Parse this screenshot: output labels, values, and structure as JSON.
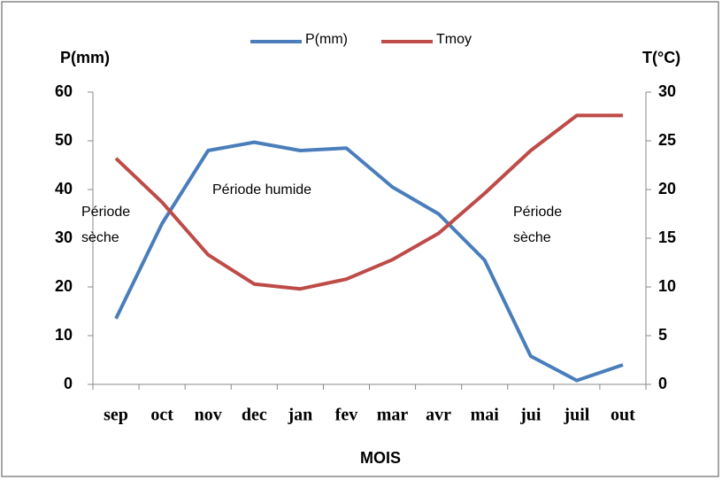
{
  "chart_data": {
    "type": "line",
    "y_label": "P(mm)",
    "y2_label": "T(°C)",
    "x_label": "MOIS",
    "categories": [
      "sep",
      "oct",
      "nov",
      "dec",
      "jan",
      "fev",
      "mar",
      "avr",
      "mai",
      "jui",
      "juil",
      "out"
    ],
    "series": [
      {
        "name": "P(mm)",
        "color": "#4a7ebb",
        "values": [
          13.5,
          33,
          48,
          49.7,
          48,
          48.5,
          40.5,
          35,
          25.5,
          5.8,
          0.8,
          4
        ]
      },
      {
        "name": "Tmoy",
        "color": "#be4b48",
        "axis": "y2",
        "values": [
          23.2,
          18.7,
          13.3,
          10.3,
          9.8,
          10.8,
          12.8,
          15.5,
          19.6,
          24,
          27.6,
          27.6
        ]
      }
    ],
    "ylim": [
      0,
      60
    ],
    "yticks": [
      0,
      10,
      20,
      30,
      40,
      50,
      60
    ],
    "y2lim": [
      0,
      30
    ],
    "y2ticks": [
      0,
      5,
      10,
      15,
      20,
      25,
      30
    ],
    "legend": "top",
    "annotations": [
      [
        "Période",
        "sèche"
      ],
      [
        "Période humide"
      ],
      [
        "Période",
        "sèche"
      ]
    ]
  }
}
